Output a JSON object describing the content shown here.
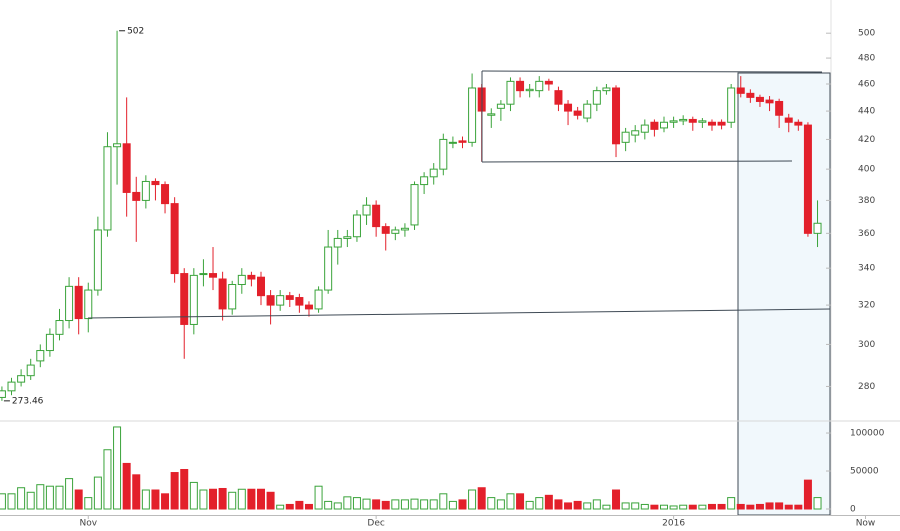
{
  "chart_data": {
    "type": "candlestick",
    "x": [
      -9,
      -8,
      -7,
      -6,
      -5,
      -4,
      -3,
      -2,
      -1,
      0,
      1,
      2,
      3,
      4,
      5,
      6,
      7,
      8,
      9,
      10,
      11,
      12,
      13,
      14,
      15,
      16,
      17,
      18,
      19,
      20,
      21,
      22,
      23,
      24,
      25,
      26,
      27,
      28,
      29,
      30,
      31,
      32,
      33,
      34,
      35,
      36,
      37,
      38,
      39,
      40,
      41,
      42,
      43,
      44,
      45,
      46,
      47,
      48,
      49,
      50,
      51,
      52,
      53,
      54,
      55,
      56,
      57,
      58,
      59,
      60,
      61,
      62,
      63,
      64,
      65,
      66,
      67,
      68,
      69,
      70,
      71,
      72,
      73,
      74,
      75,
      76
    ],
    "open": [
      275,
      278,
      282,
      285,
      292,
      297,
      305,
      312,
      330,
      313,
      328,
      362,
      415,
      417,
      385,
      380,
      392,
      390,
      378,
      337,
      310,
      337,
      337,
      334,
      318,
      331,
      336,
      335,
      325,
      320,
      325,
      324,
      320,
      318,
      328,
      352,
      357,
      358,
      371,
      377,
      364,
      360,
      362,
      365,
      390,
      395,
      400,
      418,
      419,
      418,
      457,
      437,
      442,
      445,
      462,
      455,
      455,
      462,
      455,
      445,
      440,
      435,
      445,
      455,
      457,
      418,
      423,
      425,
      432,
      428,
      432,
      433,
      434,
      432,
      432,
      432,
      432,
      457,
      453,
      450,
      448,
      447,
      435,
      432,
      430,
      360
    ],
    "high": [
      280,
      284,
      288,
      293,
      300,
      308,
      318,
      335,
      335,
      332,
      370,
      425,
      502,
      450,
      395,
      396,
      394,
      392,
      382,
      340,
      340,
      345,
      352,
      338,
      333,
      340,
      338,
      338,
      328,
      328,
      327,
      326,
      322,
      330,
      362,
      362,
      362,
      374,
      382,
      380,
      366,
      364,
      366,
      392,
      398,
      404,
      424,
      422,
      422,
      468,
      460,
      442,
      448,
      465,
      465,
      460,
      466,
      464,
      458,
      448,
      443,
      448,
      458,
      460,
      459,
      428,
      430,
      434,
      434,
      436,
      436,
      437,
      436,
      435,
      434,
      434,
      460,
      466,
      456,
      452,
      451,
      449,
      438,
      434,
      432,
      380
    ],
    "low": [
      273.46,
      276,
      280,
      283,
      289,
      294,
      302,
      308,
      305,
      306,
      325,
      358,
      390,
      370,
      355,
      375,
      380,
      372,
      332,
      293,
      305,
      330,
      328,
      312,
      315,
      326,
      330,
      320,
      310,
      317,
      319,
      316,
      314,
      316,
      326,
      342,
      352,
      355,
      365,
      358,
      350,
      356,
      358,
      362,
      384,
      390,
      396,
      414,
      414,
      415,
      405,
      428,
      433,
      440,
      450,
      450,
      450,
      455,
      440,
      430,
      434,
      432,
      440,
      452,
      408,
      412,
      418,
      420,
      422,
      425,
      428,
      430,
      426,
      428,
      426,
      427,
      428,
      450,
      446,
      443,
      440,
      428,
      425,
      426,
      358,
      352
    ],
    "close": [
      278,
      282,
      285,
      290,
      297,
      305,
      312,
      330,
      313,
      328,
      362,
      415,
      417,
      385,
      380,
      392,
      390,
      378,
      337,
      310,
      336,
      337,
      335,
      318,
      331,
      336,
      334,
      325,
      320,
      325,
      323,
      320,
      318,
      328,
      352,
      357,
      358,
      371,
      377,
      364,
      360,
      362,
      363,
      390,
      395,
      400,
      420,
      418,
      418,
      457,
      440,
      438,
      445,
      462,
      455,
      456,
      462,
      460,
      445,
      440,
      437,
      445,
      455,
      457,
      417,
      425,
      426,
      430,
      427,
      432,
      433,
      434,
      432,
      433,
      430,
      430,
      457,
      453,
      450,
      447,
      446,
      437,
      432,
      430,
      360,
      366
    ],
    "volume": [
      20000,
      20000,
      28000,
      22000,
      32000,
      30000,
      30000,
      40000,
      25000,
      15000,
      42000,
      78000,
      108000,
      60000,
      45000,
      25000,
      25000,
      20000,
      48000,
      52000,
      35000,
      25000,
      26000,
      27000,
      22000,
      26000,
      26000,
      26000,
      22000,
      5000,
      6000,
      10000,
      6000,
      30000,
      10000,
      8000,
      16000,
      15000,
      13000,
      12000,
      10000,
      12000,
      12000,
      13000,
      12000,
      12000,
      20000,
      10000,
      12000,
      25000,
      28000,
      15000,
      12000,
      20000,
      20000,
      10000,
      15000,
      18000,
      12000,
      8000,
      10000,
      8000,
      12000,
      5000,
      25000,
      8000,
      8000,
      6000,
      5000,
      5000,
      4000,
      5000,
      5000,
      5000,
      6000,
      6000,
      15000,
      6000,
      5000,
      6000,
      8000,
      8000,
      5000,
      5000,
      38000,
      15000
    ],
    "up_color": "#3aa33a",
    "down_color": "#e3202b",
    "xlim": [
      -9.2,
      77.3
    ],
    "xticks": [
      {
        "value": 0,
        "label": "Nov"
      },
      {
        "value": 30,
        "label": "Dec"
      },
      {
        "value": 61,
        "label": "2016"
      },
      {
        "value": 81,
        "label": "Now"
      }
    ],
    "ylim": [
      265,
      528
    ],
    "log_scale": true,
    "yticks": [
      280,
      300,
      320,
      340,
      360,
      380,
      400,
      420,
      440,
      460,
      480,
      500
    ],
    "y2lim": [
      0,
      114000
    ],
    "y2ticks": [
      0,
      50000,
      100000
    ],
    "annotations": [
      {
        "label": "502",
        "x": 3,
        "y": 502
      },
      {
        "label": "273.46",
        "x": -9,
        "y": 273.46
      }
    ]
  }
}
